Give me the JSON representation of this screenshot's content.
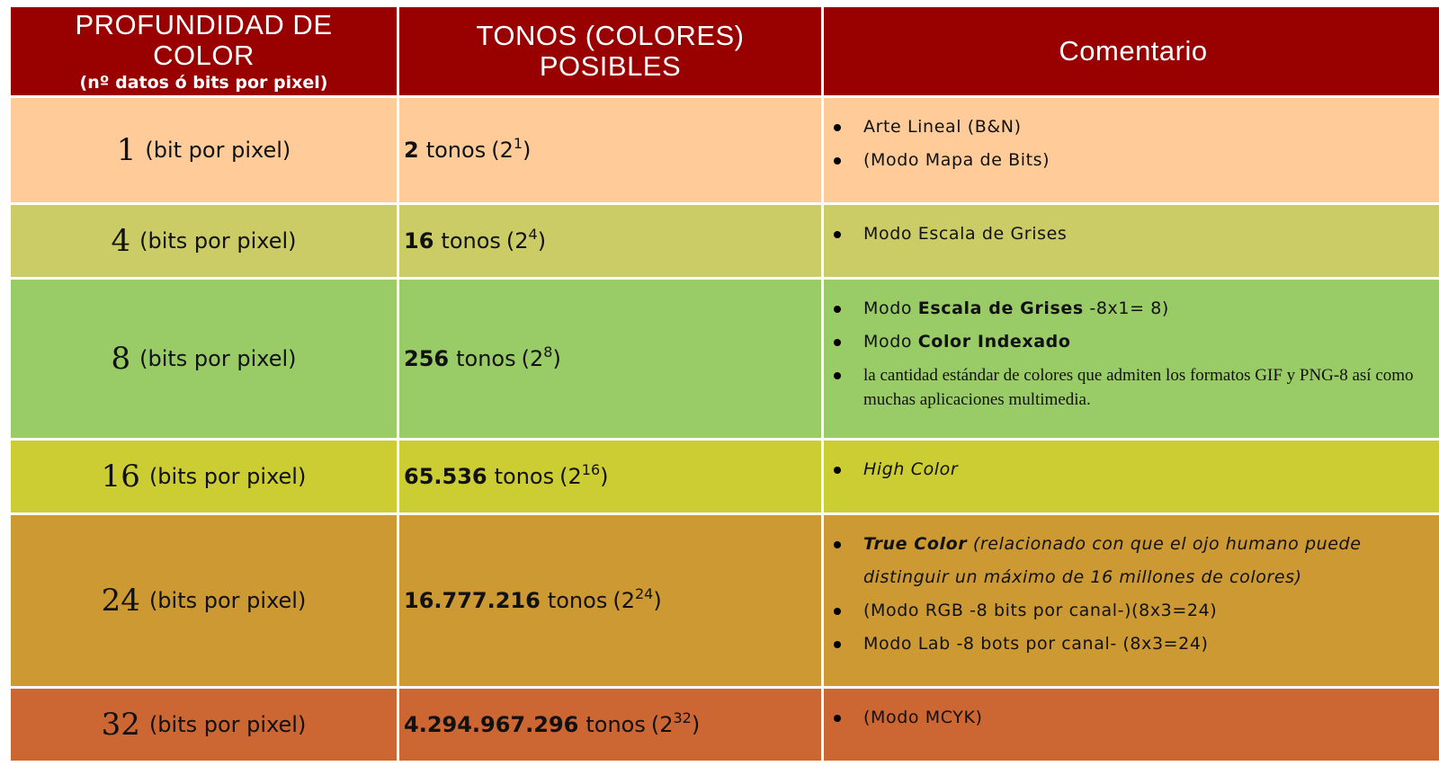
{
  "header": {
    "col1_line1": "PROFUNDIDAD DE",
    "col1_line2": "COLOR",
    "col1_sub": "(nº datos ó bits por pixel)",
    "col2_line1": "TONOS (COLORES)",
    "col2_line2": "POSIBLES",
    "col3": "Comentario"
  },
  "colors": {
    "header": "#990000",
    "row1": "#FFCC99",
    "row2": "#CCCC66",
    "row3": "#99CC66",
    "row4": "#CCCC33",
    "row5": "#CC9933",
    "row6": "#CC6633"
  },
  "rows": [
    {
      "depth": "1",
      "unit": "(bit por pixel)",
      "tones": "2",
      "tones_word": "tonos",
      "pow_open": "(2",
      "exp": "1",
      "pow_close": ")",
      "c_a": "Arte Lineal (B&N)",
      "c_b": "(Modo Mapa de Bits)"
    },
    {
      "depth": "4",
      "unit": "(bits por pixel)",
      "tones": "16",
      "tones_word": "tonos",
      "pow_open": "(2",
      "exp": "4",
      "pow_close": ")",
      "c_a": "Modo Escala de Grises"
    },
    {
      "depth": "8",
      "unit": "(bits por pixel)",
      "tones": "256",
      "tones_word": "tonos",
      "pow_open": "(2",
      "exp": "8",
      "pow_close": ")",
      "c_a_pre": "Modo ",
      "c_a_bold": "Escala de Grises",
      "c_a_post": " -8x1= 8)",
      "c_b_pre": "Modo ",
      "c_b_bold": "Color Indexado",
      "c_c": "la cantidad estándar de colores que admiten los formatos GIF y PNG-8 así como muchas aplicaciones multimedia."
    },
    {
      "depth": "16",
      "unit": "(bits por pixel)",
      "tones": "65.536",
      "tones_word": "tonos",
      "pow_open": "(2",
      "exp": "16",
      "pow_close": ")",
      "c_a": "High Color"
    },
    {
      "depth": "24",
      "unit": "(bits por pixel)",
      "tones": "16.777.216",
      "tones_word": "tonos",
      "pow_open": "(2",
      "exp": "24",
      "pow_close": ")",
      "c_a_bold": "True Color",
      "c_a_post": " (relacionado con que el ojo humano puede distinguir un máximo de 16 millones de colores)",
      "c_b": "(Modo RGB -8 bits por canal-)(8x3=24)",
      "c_c": "Modo Lab -8 bots por canal- (8x3=24)"
    },
    {
      "depth": "32",
      "unit": "(bits por pixel)",
      "tones": "4.294.967.296",
      "tones_word": "tonos",
      "pow_open": "(2",
      "exp": "32",
      "pow_close": ")",
      "c_a": "(Modo MCYK)"
    }
  ]
}
